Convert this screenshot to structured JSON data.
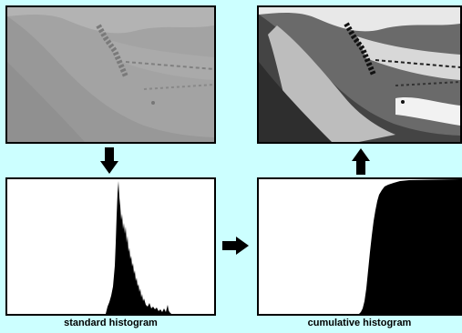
{
  "captions": {
    "standard": "standard histogram",
    "cumulative": "cumulative histogram"
  },
  "colors": {
    "background": "#ccffff",
    "frame": "#000000",
    "histogram_fill": "#000000"
  },
  "icons": {
    "down_arrow": "arrow-down-icon",
    "right_arrow": "arrow-right-icon",
    "up_arrow": "arrow-up-icon"
  }
}
